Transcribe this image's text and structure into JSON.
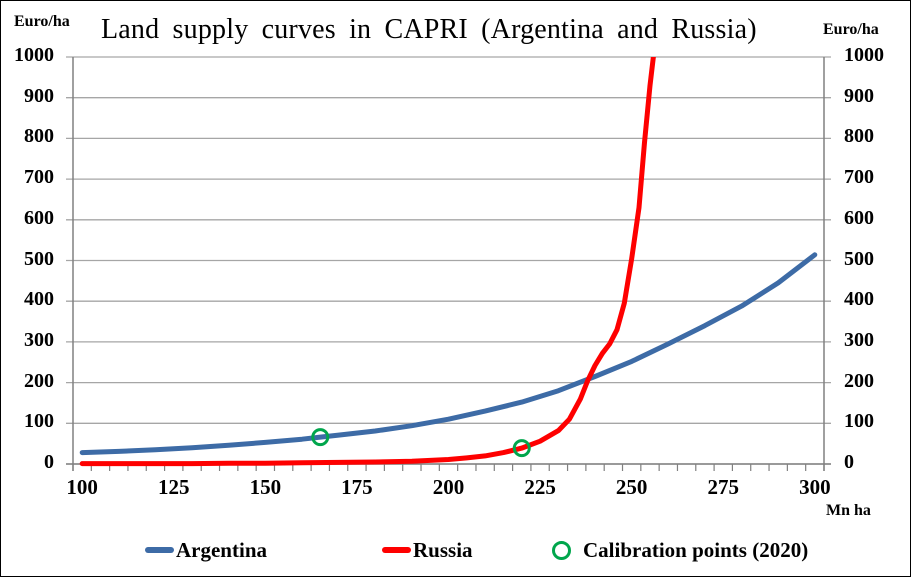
{
  "title": "Land supply curves in CAPRI (Argentina and Russia)",
  "axis_unit_labels": {
    "top_left": "Euro/ha",
    "top_right": "Euro/ha",
    "bottom_right": "Mn ha"
  },
  "legend": {
    "items": [
      {
        "label": "Argentina",
        "swatch": "line",
        "color": "#3D6BA6"
      },
      {
        "label": "Russia",
        "swatch": "line",
        "color": "#FE0000"
      },
      {
        "label": "Calibration points (2020)",
        "swatch": "ring",
        "color": "#00A64C"
      }
    ]
  },
  "chart_data": {
    "type": "line",
    "title": "Land supply curves in CAPRI (Argentina and Russia)",
    "xlabel": "Mn ha",
    "ylabel": "Euro/ha",
    "xlim": [
      97.5,
      302.5
    ],
    "ylim": [
      0,
      1000
    ],
    "x_ticks": [
      100,
      125,
      150,
      175,
      200,
      225,
      250,
      275,
      300
    ],
    "x_minor_tick_step": 5,
    "y_ticks": [
      0,
      100,
      200,
      300,
      400,
      500,
      600,
      700,
      800,
      900,
      1000
    ],
    "grid": "horizontal",
    "grid_color": "#A6A6A6",
    "axis_color": "#808080",
    "legend_position": "bottom",
    "series": [
      {
        "name": "Argentina",
        "color": "#3D6BA6",
        "x": [
          100,
          110,
          120,
          130,
          140,
          150,
          160,
          165,
          170,
          180,
          190,
          200,
          210,
          220,
          230,
          240,
          250,
          260,
          270,
          280,
          290,
          300
        ],
        "y": [
          28,
          31,
          35,
          40,
          46,
          53,
          61,
          66,
          71,
          81,
          94,
          110,
          130,
          152,
          180,
          215,
          252,
          295,
          340,
          388,
          445,
          514
        ]
      },
      {
        "name": "Russia",
        "color": "#FE0000",
        "x": [
          100,
          110,
          120,
          130,
          140,
          150,
          160,
          170,
          180,
          190,
          200,
          205,
          210,
          215,
          220,
          225,
          230,
          233,
          236,
          238,
          240,
          242,
          244,
          246,
          248,
          250,
          252,
          253.5,
          255,
          256.3
        ],
        "y": [
          1,
          1,
          1,
          1,
          2,
          2,
          3,
          4,
          5,
          7,
          11,
          15,
          20,
          28,
          39,
          56,
          82,
          110,
          160,
          205,
          242,
          272,
          295,
          330,
          395,
          505,
          630,
          790,
          930,
          1030
        ]
      }
    ],
    "calibration_points": {
      "label": "Calibration points (2020)",
      "color": "#00A64C",
      "points": [
        [
          165,
          66
        ],
        [
          220,
          39
        ]
      ]
    }
  }
}
